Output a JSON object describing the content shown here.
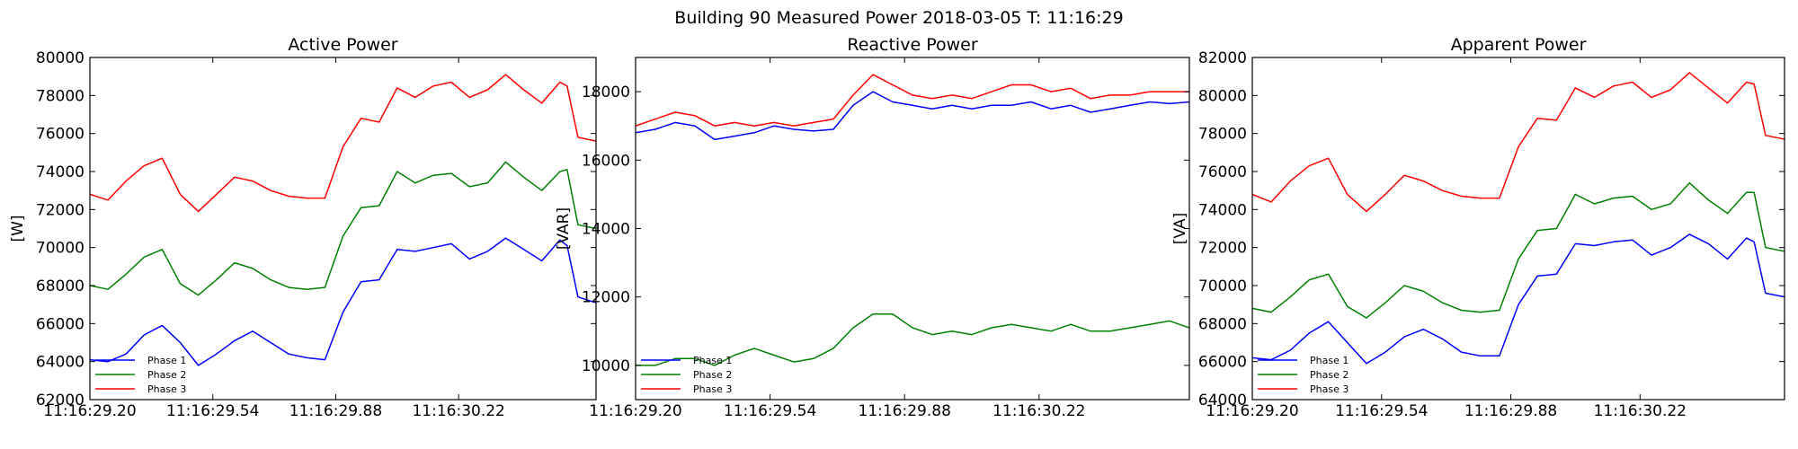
{
  "figure_title": "Building 90 Measured Power 2018-03-05 T: 11:16:29",
  "colors": {
    "phase1": "#0000ff",
    "phase2": "#008000",
    "phase3": "#ff0000"
  },
  "chart_data": [
    {
      "type": "line",
      "title": "Active Power",
      "ylabel": "[W]",
      "ylim": [
        62000,
        80000
      ],
      "xlim": [
        29.2,
        30.6
      ],
      "yticks": [
        62000,
        64000,
        66000,
        68000,
        70000,
        72000,
        74000,
        76000,
        78000,
        80000
      ],
      "xticks": [
        29.2,
        29.54,
        29.88,
        30.22
      ],
      "xtick_labels": [
        "11:16:29.20",
        "11:16:29.54",
        "11:16:29.88",
        "11:16:30.22"
      ],
      "legend": "bottom-left",
      "grid": false,
      "series": [
        {
          "name": "Phase 1",
          "color": "#0000ff",
          "x": [
            29.2,
            29.25,
            29.3,
            29.35,
            29.4,
            29.45,
            29.5,
            29.55,
            29.6,
            29.65,
            29.7,
            29.75,
            29.8,
            29.85,
            29.9,
            29.95,
            30.0,
            30.05,
            30.1,
            30.15,
            30.2,
            30.25,
            30.3,
            30.35,
            30.4,
            30.45,
            30.5,
            30.52,
            30.55,
            30.6
          ],
          "y": [
            64100,
            64000,
            64400,
            65400,
            65900,
            65000,
            63800,
            64400,
            65100,
            65600,
            65000,
            64400,
            64200,
            64100,
            66600,
            68200,
            68300,
            69900,
            69800,
            70000,
            70200,
            69400,
            69800,
            70500,
            69900,
            69300,
            70400,
            70100,
            67400,
            67100
          ]
        },
        {
          "name": "Phase 2",
          "color": "#008000",
          "x": [
            29.2,
            29.25,
            29.3,
            29.35,
            29.4,
            29.45,
            29.5,
            29.55,
            29.6,
            29.65,
            29.7,
            29.75,
            29.8,
            29.85,
            29.9,
            29.95,
            30.0,
            30.05,
            30.1,
            30.15,
            30.2,
            30.25,
            30.3,
            30.35,
            30.4,
            30.45,
            30.5,
            30.52,
            30.55,
            30.6
          ],
          "y": [
            68000,
            67800,
            68600,
            69500,
            69900,
            68100,
            67500,
            68300,
            69200,
            68900,
            68300,
            67900,
            67800,
            67900,
            70600,
            72100,
            72200,
            74000,
            73400,
            73800,
            73900,
            73200,
            73400,
            74500,
            73700,
            73000,
            74000,
            74100,
            71200,
            71000
          ]
        },
        {
          "name": "Phase 3",
          "color": "#ff0000",
          "x": [
            29.2,
            29.25,
            29.3,
            29.35,
            29.4,
            29.45,
            29.5,
            29.55,
            29.6,
            29.65,
            29.7,
            29.75,
            29.8,
            29.85,
            29.9,
            29.95,
            30.0,
            30.05,
            30.1,
            30.15,
            30.2,
            30.25,
            30.3,
            30.35,
            30.4,
            30.45,
            30.5,
            30.52,
            30.55,
            30.6
          ],
          "y": [
            72800,
            72500,
            73500,
            74300,
            74700,
            72800,
            71900,
            72800,
            73700,
            73500,
            73000,
            72700,
            72600,
            72600,
            75300,
            76800,
            76600,
            78400,
            77900,
            78500,
            78700,
            77900,
            78300,
            79100,
            78300,
            77600,
            78700,
            78500,
            75800,
            75600
          ]
        }
      ]
    },
    {
      "type": "line",
      "title": "Reactive Power",
      "ylabel": "[VAR]",
      "ylim": [
        9000,
        19000
      ],
      "xlim": [
        29.2,
        30.6
      ],
      "yticks": [
        10000,
        12000,
        14000,
        16000,
        18000
      ],
      "xticks": [
        29.2,
        29.54,
        29.88,
        30.22
      ],
      "xtick_labels": [
        "11:16:29.20",
        "11:16:29.54",
        "11:16:29.88",
        "11:16:30.22"
      ],
      "legend": "bottom-left",
      "grid": false,
      "series": [
        {
          "name": "Phase 1",
          "color": "#0000ff",
          "x": [
            29.2,
            29.25,
            29.3,
            29.35,
            29.4,
            29.45,
            29.5,
            29.55,
            29.6,
            29.65,
            29.7,
            29.75,
            29.8,
            29.85,
            29.9,
            29.95,
            30.0,
            30.05,
            30.1,
            30.15,
            30.2,
            30.25,
            30.3,
            30.35,
            30.4,
            30.45,
            30.5,
            30.55,
            30.6
          ],
          "y": [
            16800,
            16900,
            17100,
            17000,
            16600,
            16700,
            16800,
            17000,
            16900,
            16850,
            16900,
            17600,
            18000,
            17700,
            17600,
            17500,
            17600,
            17500,
            17600,
            17600,
            17700,
            17500,
            17600,
            17400,
            17500,
            17600,
            17700,
            17650,
            17700
          ]
        },
        {
          "name": "Phase 2",
          "color": "#008000",
          "x": [
            29.2,
            29.25,
            29.3,
            29.35,
            29.4,
            29.45,
            29.5,
            29.55,
            29.6,
            29.65,
            29.7,
            29.75,
            29.8,
            29.85,
            29.9,
            29.95,
            30.0,
            30.05,
            30.1,
            30.15,
            30.2,
            30.25,
            30.3,
            30.35,
            30.4,
            30.45,
            30.5,
            30.55,
            30.6
          ],
          "y": [
            10000,
            10000,
            10200,
            10200,
            10000,
            10300,
            10500,
            10300,
            10100,
            10200,
            10500,
            11100,
            11500,
            11500,
            11100,
            10900,
            11000,
            10900,
            11100,
            11200,
            11100,
            11000,
            11200,
            11000,
            11000,
            11100,
            11200,
            11300,
            11100
          ]
        },
        {
          "name": "Phase 3",
          "color": "#ff0000",
          "x": [
            29.2,
            29.25,
            29.3,
            29.35,
            29.4,
            29.45,
            29.5,
            29.55,
            29.6,
            29.65,
            29.7,
            29.75,
            29.8,
            29.85,
            29.9,
            29.95,
            30.0,
            30.05,
            30.1,
            30.15,
            30.2,
            30.25,
            30.3,
            30.35,
            30.4,
            30.45,
            30.5,
            30.55,
            30.6
          ],
          "y": [
            17000,
            17200,
            17400,
            17300,
            17000,
            17100,
            17000,
            17100,
            17000,
            17100,
            17200,
            17900,
            18500,
            18200,
            17900,
            17800,
            17900,
            17800,
            18000,
            18200,
            18200,
            18000,
            18100,
            17800,
            17900,
            17900,
            18000,
            18000,
            18000
          ]
        }
      ]
    },
    {
      "type": "line",
      "title": "Apparent Power",
      "ylabel": "[VA]",
      "ylim": [
        64000,
        82000
      ],
      "xlim": [
        29.2,
        30.6
      ],
      "yticks": [
        64000,
        66000,
        68000,
        70000,
        72000,
        74000,
        76000,
        78000,
        80000,
        82000
      ],
      "xticks": [
        29.2,
        29.54,
        29.88,
        30.22
      ],
      "xtick_labels": [
        "11:16:29.20",
        "11:16:29.54",
        "11:16:29.88",
        "11:16:30.22"
      ],
      "legend": "bottom-left",
      "grid": false,
      "series": [
        {
          "name": "Phase 1",
          "color": "#0000ff",
          "x": [
            29.2,
            29.25,
            29.3,
            29.35,
            29.4,
            29.45,
            29.5,
            29.55,
            29.6,
            29.65,
            29.7,
            29.75,
            29.8,
            29.85,
            29.9,
            29.95,
            30.0,
            30.05,
            30.1,
            30.15,
            30.2,
            30.25,
            30.3,
            30.35,
            30.4,
            30.45,
            30.5,
            30.52,
            30.55,
            30.6
          ],
          "y": [
            66200,
            66100,
            66600,
            67500,
            68100,
            67000,
            65900,
            66500,
            67300,
            67700,
            67200,
            66500,
            66300,
            66300,
            69000,
            70500,
            70600,
            72200,
            72100,
            72300,
            72400,
            71600,
            72000,
            72700,
            72200,
            71400,
            72500,
            72300,
            69600,
            69400
          ]
        },
        {
          "name": "Phase 2",
          "color": "#008000",
          "x": [
            29.2,
            29.25,
            29.3,
            29.35,
            29.4,
            29.45,
            29.5,
            29.55,
            29.6,
            29.65,
            29.7,
            29.75,
            29.8,
            29.85,
            29.9,
            29.95,
            30.0,
            30.05,
            30.1,
            30.15,
            30.2,
            30.25,
            30.3,
            30.35,
            30.4,
            30.45,
            30.5,
            30.52,
            30.55,
            30.6
          ],
          "y": [
            68800,
            68600,
            69400,
            70300,
            70600,
            68900,
            68300,
            69100,
            70000,
            69700,
            69100,
            68700,
            68600,
            68700,
            71400,
            72900,
            73000,
            74800,
            74300,
            74600,
            74700,
            74000,
            74300,
            75400,
            74500,
            73800,
            74900,
            74900,
            72000,
            71800
          ]
        },
        {
          "name": "Phase 3",
          "color": "#ff0000",
          "x": [
            29.2,
            29.25,
            29.3,
            29.35,
            29.4,
            29.45,
            29.5,
            29.55,
            29.6,
            29.65,
            29.7,
            29.75,
            29.8,
            29.85,
            29.9,
            29.95,
            30.0,
            30.05,
            30.1,
            30.15,
            30.2,
            30.25,
            30.3,
            30.35,
            30.4,
            30.45,
            30.5,
            30.52,
            30.55,
            30.6
          ],
          "y": [
            74800,
            74400,
            75500,
            76300,
            76700,
            74800,
            73900,
            74800,
            75800,
            75500,
            75000,
            74700,
            74600,
            74600,
            77300,
            78800,
            78700,
            80400,
            79900,
            80500,
            80700,
            79900,
            80300,
            81200,
            80400,
            79600,
            80700,
            80600,
            77900,
            77700
          ]
        }
      ]
    }
  ]
}
